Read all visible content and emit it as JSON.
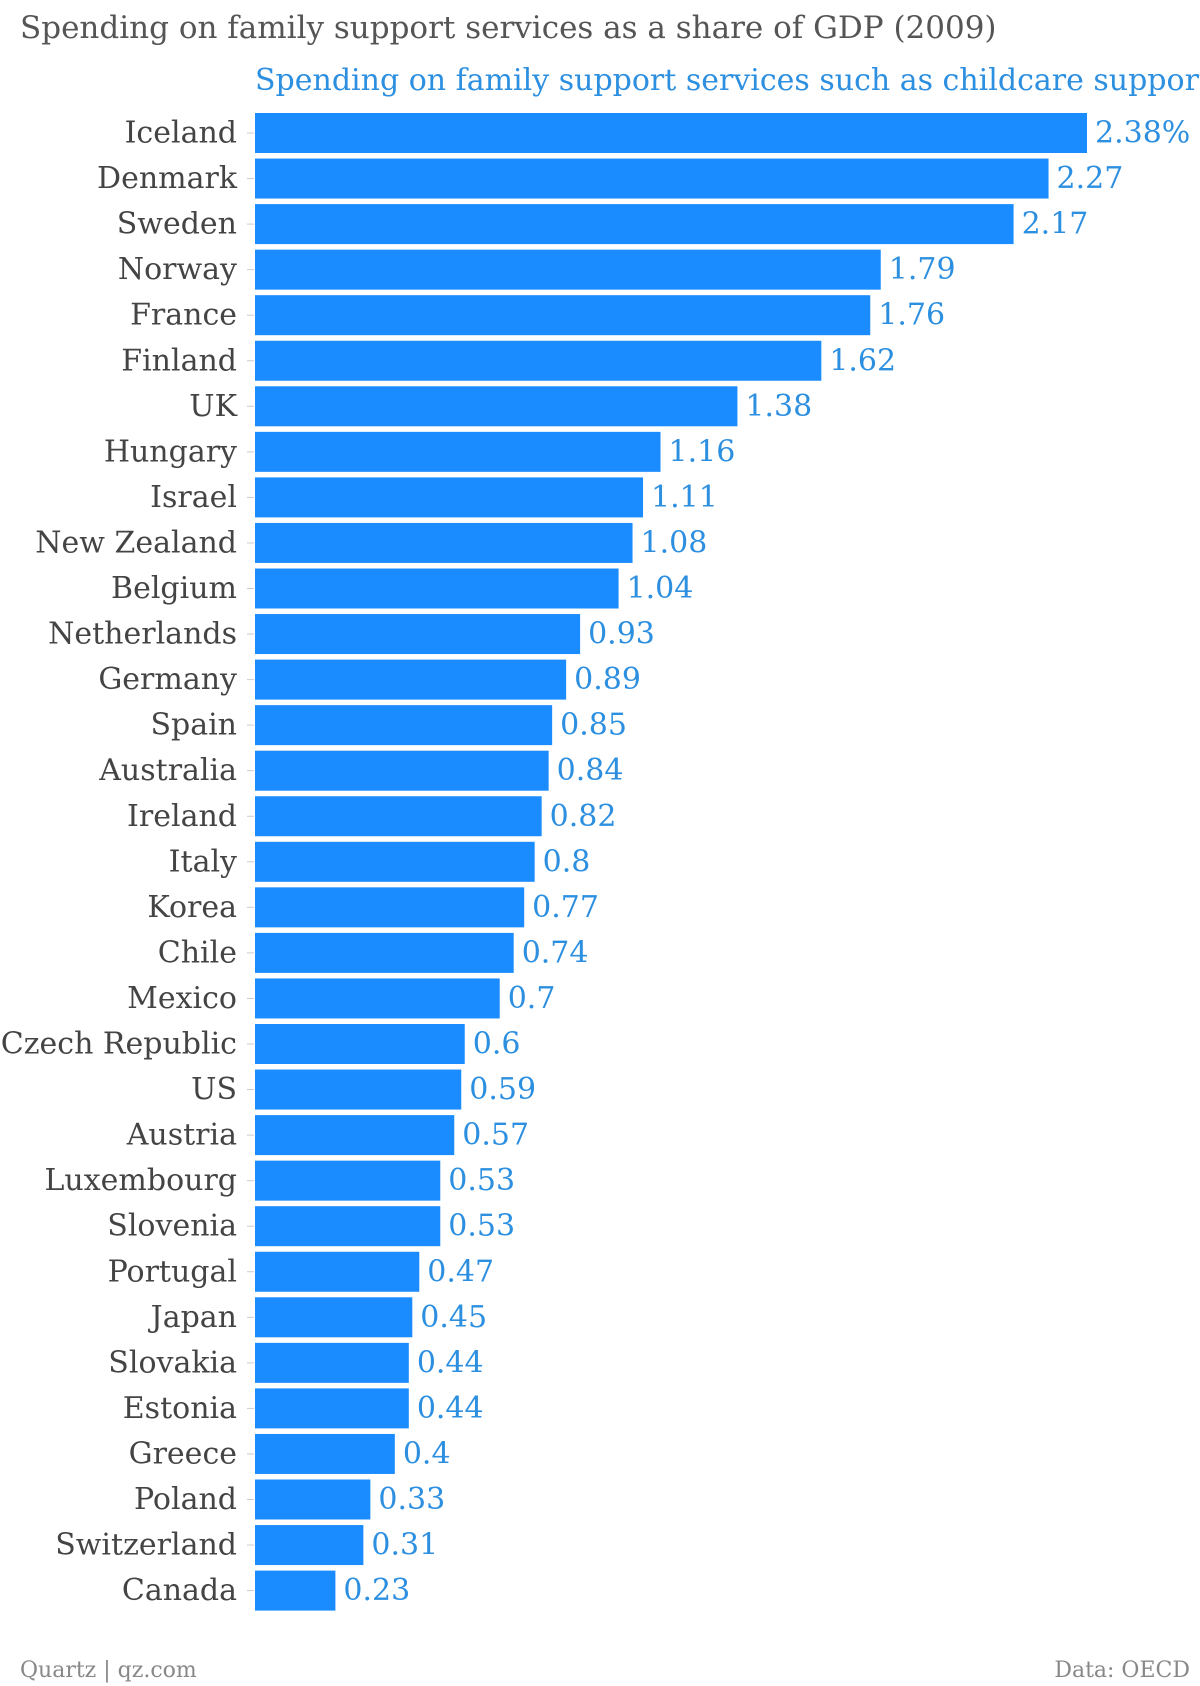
{
  "page": {
    "title": "Spending on family support services as a share of GDP (2009)",
    "footer_source": "Quartz | qz.com",
    "footer_data": "Data: OECD"
  },
  "colors": {
    "bar": "#1a8cff",
    "value_text": "#2d8fe0",
    "category_text": "#444444",
    "title_text": "#555555",
    "footer_text": "#888888"
  },
  "chart_data": {
    "type": "bar",
    "orientation": "horizontal",
    "title": "Spending on family support services as a share of GDP (2009)",
    "categories": [
      "Iceland",
      "Denmark",
      "Sweden",
      "Norway",
      "France",
      "Finland",
      "UK",
      "Hungary",
      "Israel",
      "New Zealand",
      "Belgium",
      "Netherlands",
      "Germany",
      "Spain",
      "Australia",
      "Ireland",
      "Italy",
      "Korea",
      "Chile",
      "Mexico",
      "Czech Republic",
      "US",
      "Austria",
      "Luxembourg",
      "Slovenia",
      "Portugal",
      "Japan",
      "Slovakia",
      "Estonia",
      "Greece",
      "Poland",
      "Switzerland",
      "Canada"
    ],
    "series": [
      {
        "name": "Spending on family support services such as childcare support",
        "values": [
          2.38,
          2.27,
          2.17,
          1.79,
          1.76,
          1.62,
          1.38,
          1.16,
          1.11,
          1.08,
          1.04,
          0.93,
          0.89,
          0.85,
          0.84,
          0.82,
          0.8,
          0.77,
          0.74,
          0.7,
          0.6,
          0.59,
          0.57,
          0.53,
          0.53,
          0.47,
          0.45,
          0.44,
          0.44,
          0.4,
          0.33,
          0.31,
          0.23
        ],
        "labels": [
          "2.38%",
          "2.27",
          "2.17",
          "1.79",
          "1.76",
          "1.62",
          "1.38",
          "1.16",
          "1.11",
          "1.08",
          "1.04",
          "0.93",
          "0.89",
          "0.85",
          "0.84",
          "0.82",
          "0.8",
          "0.77",
          "0.74",
          "0.7",
          "0.6",
          "0.59",
          "0.57",
          "0.53",
          "0.53",
          "0.47",
          "0.45",
          "0.44",
          "0.44",
          "0.4",
          "0.33",
          "0.31",
          "0.23"
        ]
      }
    ],
    "xlim": [
      0,
      2.38
    ],
    "grid": false,
    "legend": "top"
  }
}
